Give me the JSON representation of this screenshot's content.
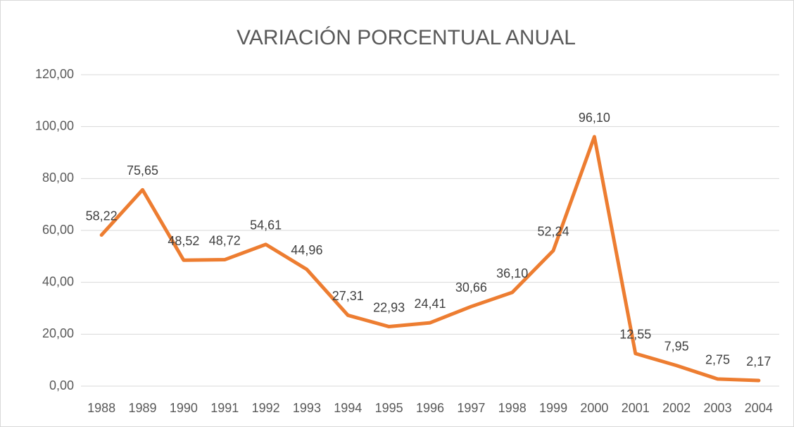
{
  "chart_data": {
    "type": "line",
    "title": "VARIACIÓN PORCENTUAL ANUAL",
    "categories": [
      "1988",
      "1989",
      "1990",
      "1991",
      "1992",
      "1993",
      "1994",
      "1995",
      "1996",
      "1997",
      "1998",
      "1999",
      "2000",
      "2001",
      "2002",
      "2003",
      "2004"
    ],
    "values": [
      58.22,
      75.65,
      48.52,
      48.72,
      54.61,
      44.96,
      27.31,
      22.93,
      24.41,
      30.66,
      36.1,
      52.24,
      96.1,
      12.55,
      7.95,
      2.75,
      2.17
    ],
    "value_labels": [
      "58,22",
      "75,65",
      "48,52",
      "48,72",
      "54,61",
      "44,96",
      "27,31",
      "22,93",
      "24,41",
      "30,66",
      "36,10",
      "52,24",
      "96,10",
      "12,55",
      "7,95",
      "2,75",
      "2,17"
    ],
    "color": "#ed7d31",
    "ylim": [
      0,
      120
    ],
    "yticks": [
      {
        "value": 0,
        "label": "0,00"
      },
      {
        "value": 20,
        "label": "20,00"
      },
      {
        "value": 40,
        "label": "40,00"
      },
      {
        "value": 60,
        "label": "60,00"
      },
      {
        "value": 80,
        "label": "80,00"
      },
      {
        "value": 100,
        "label": "100,00"
      },
      {
        "value": 120,
        "label": "120,00"
      }
    ],
    "grid": true
  }
}
